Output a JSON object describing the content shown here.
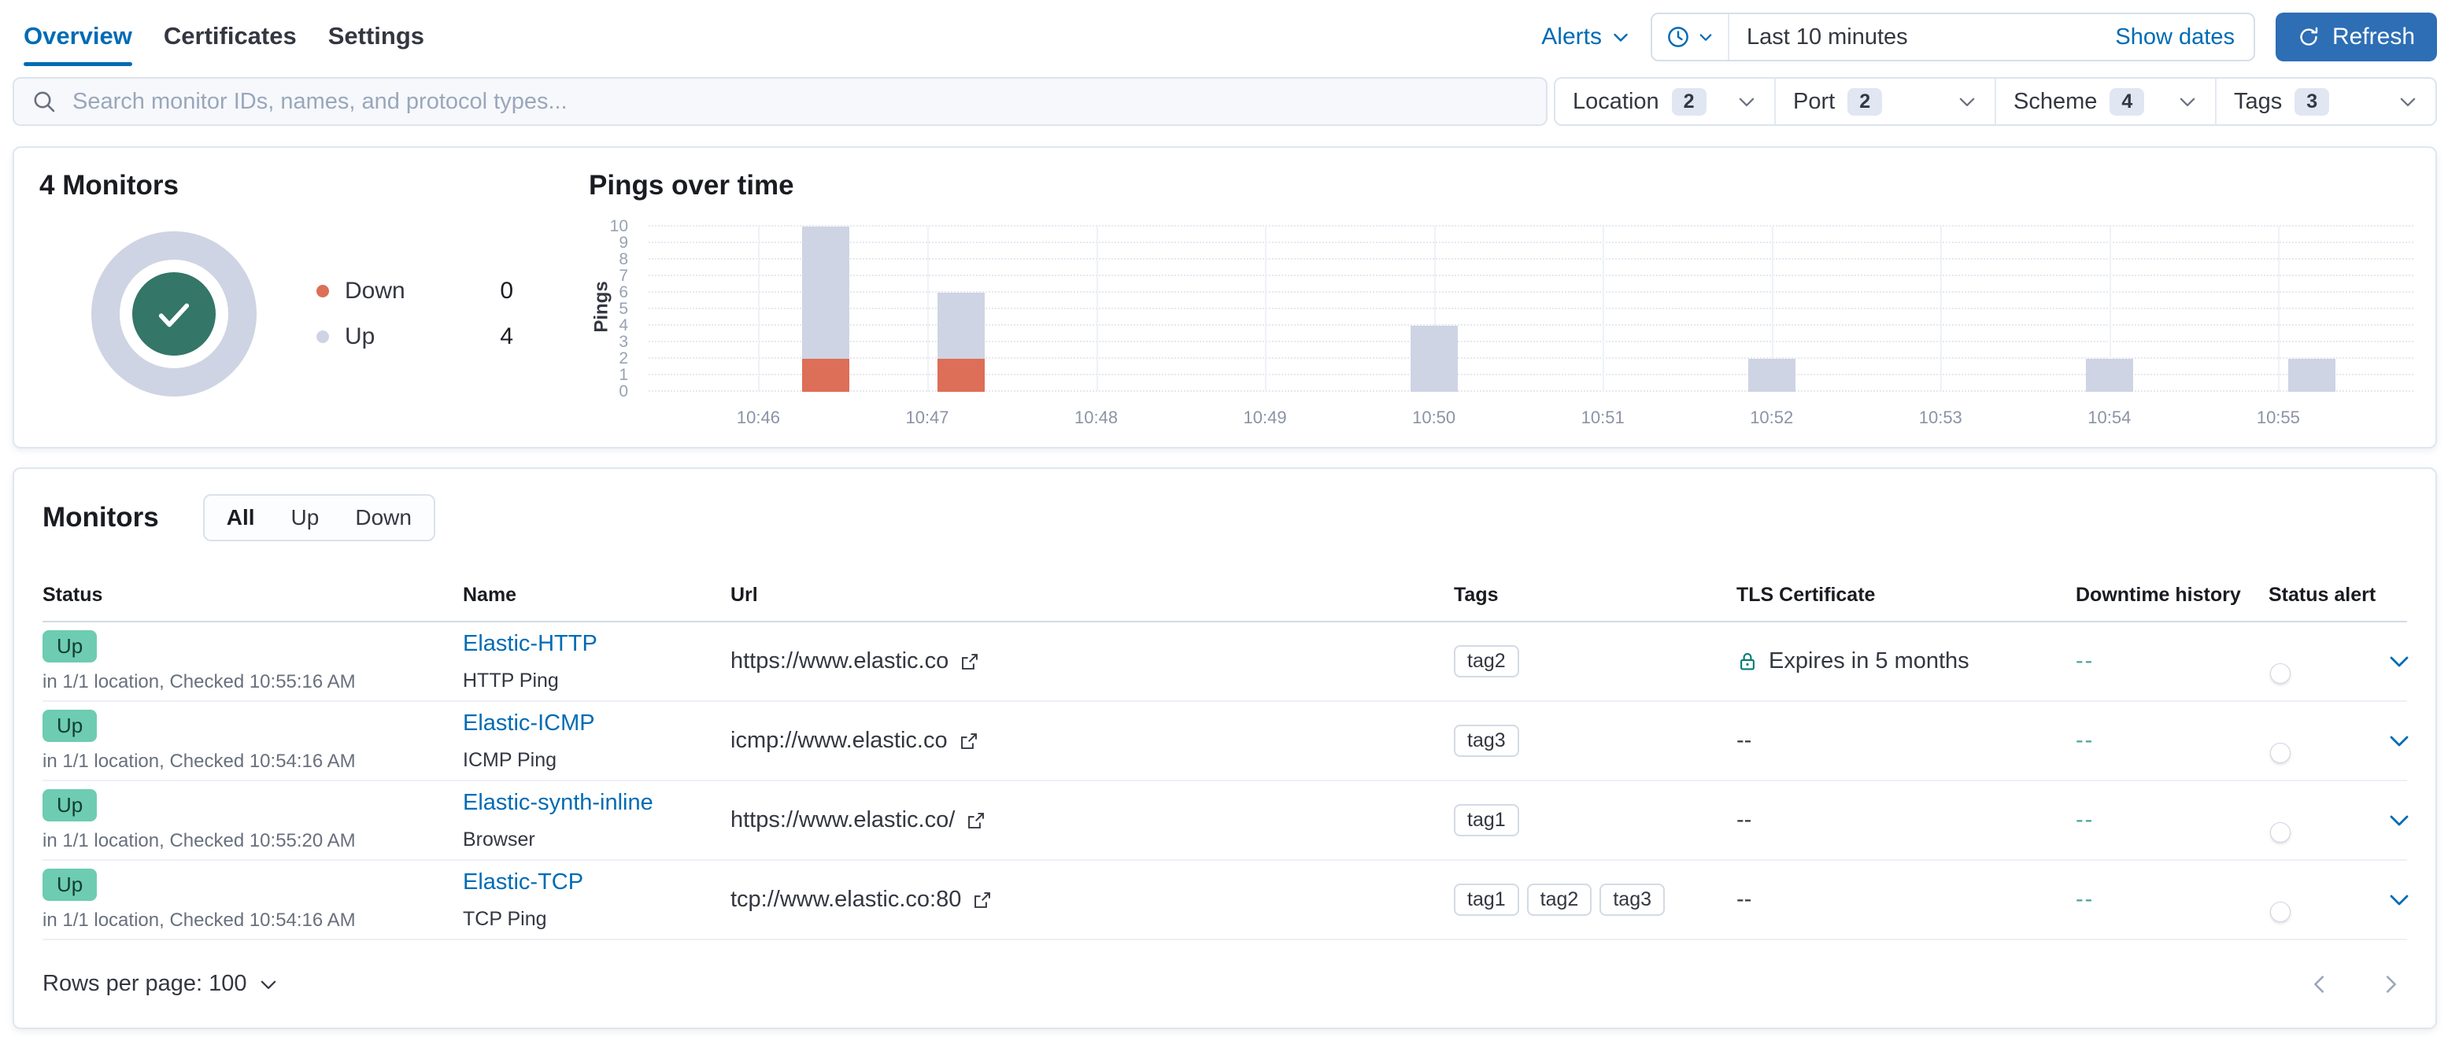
{
  "header": {
    "tabs": [
      {
        "label": "Overview",
        "active": true
      },
      {
        "label": "Certificates",
        "active": false
      },
      {
        "label": "Settings",
        "active": false
      }
    ],
    "alerts_label": "Alerts",
    "time_picker": {
      "value": "Last 10 minutes",
      "show_dates_label": "Show dates"
    },
    "refresh_label": "Refresh"
  },
  "filters": {
    "search_placeholder": "Search monitor IDs, names, and protocol types...",
    "items": [
      {
        "label": "Location",
        "count": "2"
      },
      {
        "label": "Port",
        "count": "2"
      },
      {
        "label": "Scheme",
        "count": "4"
      },
      {
        "label": "Tags",
        "count": "3"
      }
    ]
  },
  "snapshot": {
    "title": "4 Monitors",
    "legend": [
      {
        "label": "Down",
        "value": "0",
        "color": "#dd6e57"
      },
      {
        "label": "Up",
        "value": "4",
        "color": "#ced4e3"
      }
    ]
  },
  "chart_data": {
    "type": "bar",
    "title": "Pings over time",
    "xlabel": "",
    "ylabel": "Pings",
    "ylim": [
      0,
      10
    ],
    "y_ticks": [
      0,
      1,
      2,
      3,
      4,
      5,
      6,
      7,
      8,
      9,
      10
    ],
    "grid": true,
    "legend_position": "none",
    "x_axis_minutes": {
      "domain": [
        45.35,
        55.8
      ],
      "ticks": [
        {
          "m": 46,
          "label": "10:46"
        },
        {
          "m": 47,
          "label": "10:47"
        },
        {
          "m": 48,
          "label": "10:48"
        },
        {
          "m": 49,
          "label": "10:49"
        },
        {
          "m": 50,
          "label": "10:50"
        },
        {
          "m": 51,
          "label": "10:51"
        },
        {
          "m": 52,
          "label": "10:52"
        },
        {
          "m": 53,
          "label": "10:53"
        },
        {
          "m": 54,
          "label": "10:54"
        },
        {
          "m": 55,
          "label": "10:55"
        }
      ]
    },
    "series": [
      {
        "name": "Down",
        "color": "#dd6e57"
      },
      {
        "name": "Up",
        "color": "#ced4e3"
      }
    ],
    "bars": [
      {
        "x_minute": 46.4,
        "down": 2,
        "up": 8
      },
      {
        "x_minute": 47.2,
        "down": 2,
        "up": 4
      },
      {
        "x_minute": 50.0,
        "down": 0,
        "up": 4
      },
      {
        "x_minute": 52.0,
        "down": 0,
        "up": 2
      },
      {
        "x_minute": 54.0,
        "down": 0,
        "up": 2
      },
      {
        "x_minute": 55.2,
        "down": 0,
        "up": 2
      }
    ]
  },
  "monitors": {
    "title": "Monitors",
    "status_filter": [
      {
        "label": "All",
        "active": true
      },
      {
        "label": "Up",
        "active": false
      },
      {
        "label": "Down",
        "active": false
      }
    ],
    "columns": [
      "Status",
      "Name",
      "Url",
      "Tags",
      "TLS Certificate",
      "Downtime history",
      "Status alert"
    ],
    "rows": [
      {
        "status": "Up",
        "status_detail": "in 1/1 location, Checked 10:55:16 AM",
        "name": "Elastic-HTTP",
        "type": "HTTP Ping",
        "url": "https://www.elastic.co",
        "tags": [
          "tag2"
        ],
        "tls": "Expires in 5 months",
        "tls_has_lock": true,
        "downtime": "--",
        "alert_enabled": false
      },
      {
        "status": "Up",
        "status_detail": "in 1/1 location, Checked 10:54:16 AM",
        "name": "Elastic-ICMP",
        "type": "ICMP Ping",
        "url": "icmp://www.elastic.co",
        "tags": [
          "tag3"
        ],
        "tls": "--",
        "tls_has_lock": false,
        "downtime": "--",
        "alert_enabled": false
      },
      {
        "status": "Up",
        "status_detail": "in 1/1 location, Checked 10:55:20 AM",
        "name": "Elastic-synth-inline",
        "type": "Browser",
        "url": "https://www.elastic.co/",
        "tags": [
          "tag1"
        ],
        "tls": "--",
        "tls_has_lock": false,
        "downtime": "--",
        "alert_enabled": false
      },
      {
        "status": "Up",
        "status_detail": "in 1/1 location, Checked 10:54:16 AM",
        "name": "Elastic-TCP",
        "type": "TCP Ping",
        "url": "tcp://www.elastic.co:80",
        "tags": [
          "tag1",
          "tag2",
          "tag3"
        ],
        "tls": "--",
        "tls_has_lock": false,
        "downtime": "--",
        "alert_enabled": false
      }
    ],
    "footer": {
      "rows_per_page_label": "Rows per page: 100"
    }
  },
  "colors": {
    "primary_link": "#006bb4",
    "refresh_button": "#2d6eb5",
    "up_badge": "#6dccb1",
    "down_red": "#dd6e57",
    "up_gray": "#ced4e3",
    "snapshot_check_green": "#347667",
    "tls_lock_green": "#017d73",
    "downtime_teal": "#4aa29e"
  }
}
